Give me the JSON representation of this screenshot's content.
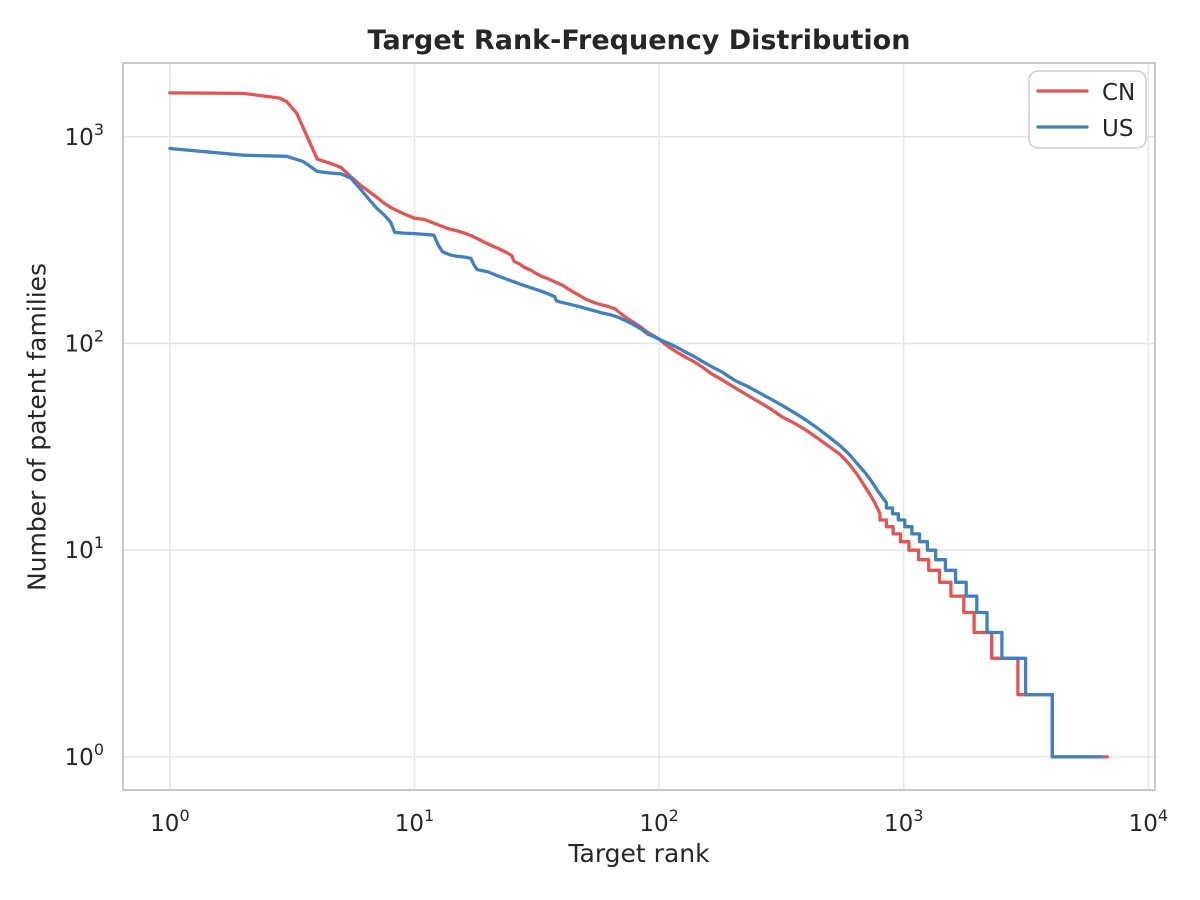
{
  "chart_data": {
    "type": "line",
    "title": "Target Rank-Frequency Distribution",
    "xlabel": "Target rank",
    "ylabel": "Number of patent families",
    "xscale": "log",
    "yscale": "log",
    "xlim": [
      0.643,
      10650
    ],
    "ylim": [
      0.692,
      2275
    ],
    "x_tick_exponents": [
      0,
      1,
      2,
      3,
      4
    ],
    "y_tick_exponents": [
      0,
      1,
      2,
      3
    ],
    "tick_base": "10",
    "grid": true,
    "legend": {
      "position": "upper right",
      "labels": [
        "CN",
        "US"
      ]
    },
    "style": {
      "grid_color": "#e6e6e6",
      "spine_color": "#c9c9c9",
      "text_color": "#262626",
      "background": "#ffffff",
      "line_width": 3.3
    },
    "series": [
      {
        "name": "CN",
        "color": "#e25552",
        "points": [
          [
            1,
            1630
          ],
          [
            2,
            1622
          ],
          [
            2.8,
            1540
          ],
          [
            3,
            1480
          ],
          [
            3.3,
            1300
          ],
          [
            4,
            780
          ],
          [
            4.5,
            745
          ],
          [
            5,
            712
          ],
          [
            5.5,
            640
          ],
          [
            6,
            585
          ],
          [
            6.5,
            545
          ],
          [
            7,
            510
          ],
          [
            7.5,
            478
          ],
          [
            8,
            455
          ],
          [
            9,
            425
          ],
          [
            10,
            404
          ],
          [
            11,
            398
          ],
          [
            12,
            382
          ],
          [
            13,
            368
          ],
          [
            14,
            357
          ],
          [
            15,
            350
          ],
          [
            16,
            342
          ],
          [
            17,
            333
          ],
          [
            18,
            322
          ],
          [
            19,
            312
          ],
          [
            20,
            303
          ],
          [
            21,
            295
          ],
          [
            22,
            288
          ],
          [
            24,
            274
          ],
          [
            25,
            266
          ],
          [
            25.5,
            250
          ],
          [
            27,
            242
          ],
          [
            28,
            234
          ],
          [
            30,
            226
          ],
          [
            31,
            220
          ],
          [
            33,
            212
          ],
          [
            35,
            206
          ],
          [
            37,
            200
          ],
          [
            40,
            192
          ],
          [
            43,
            182
          ],
          [
            46,
            174
          ],
          [
            50,
            164
          ],
          [
            54,
            158
          ],
          [
            58,
            154
          ],
          [
            62,
            151
          ],
          [
            66,
            147
          ],
          [
            70,
            139
          ],
          [
            75,
            131
          ],
          [
            80,
            125
          ],
          [
            85,
            119
          ],
          [
            90,
            113
          ],
          [
            95,
            109
          ],
          [
            100,
            105
          ],
          [
            105,
            100
          ],
          [
            110,
            96
          ],
          [
            118,
            91
          ],
          [
            128,
            86
          ],
          [
            138,
            82
          ],
          [
            150,
            77
          ],
          [
            165,
            71
          ],
          [
            180,
            67
          ],
          [
            200,
            62
          ],
          [
            225,
            57
          ],
          [
            250,
            53
          ],
          [
            280,
            49
          ],
          [
            320,
            44
          ],
          [
            360,
            41
          ],
          [
            400,
            38
          ],
          [
            450,
            34.5
          ],
          [
            500,
            31.5
          ],
          [
            550,
            29
          ],
          [
            600,
            26
          ],
          [
            650,
            23
          ],
          [
            700,
            20
          ],
          [
            730,
            18.5
          ],
          [
            760,
            17
          ],
          [
            790,
            15.5
          ],
          [
            800,
            15
          ],
          [
            800,
            14
          ],
          [
            850,
            14
          ],
          [
            850,
            13
          ],
          [
            905,
            13
          ],
          [
            905,
            12
          ],
          [
            970,
            12
          ],
          [
            970,
            11
          ],
          [
            1050,
            11
          ],
          [
            1050,
            10
          ],
          [
            1150,
            10
          ],
          [
            1150,
            9
          ],
          [
            1265,
            9
          ],
          [
            1265,
            8
          ],
          [
            1400,
            8
          ],
          [
            1400,
            7
          ],
          [
            1560,
            7
          ],
          [
            1560,
            6
          ],
          [
            1760,
            6
          ],
          [
            1760,
            5
          ],
          [
            1940,
            5
          ],
          [
            1940,
            4
          ],
          [
            2290,
            4
          ],
          [
            2290,
            3
          ],
          [
            2930,
            3
          ],
          [
            2930,
            2
          ],
          [
            4050,
            2
          ],
          [
            4050,
            1
          ],
          [
            6800,
            1
          ]
        ]
      },
      {
        "name": "US",
        "color": "#3f80c1",
        "points": [
          [
            1,
            878
          ],
          [
            2,
            815
          ],
          [
            3,
            805
          ],
          [
            3.5,
            760
          ],
          [
            4,
            680
          ],
          [
            4.5,
            668
          ],
          [
            5,
            662
          ],
          [
            5.5,
            630
          ],
          [
            6,
            560
          ],
          [
            6.5,
            500
          ],
          [
            7,
            452
          ],
          [
            7.5,
            420
          ],
          [
            8,
            385
          ],
          [
            8.3,
            345
          ],
          [
            9,
            342
          ],
          [
            10,
            340
          ],
          [
            11,
            337
          ],
          [
            12,
            334
          ],
          [
            12.5,
            300
          ],
          [
            13,
            278
          ],
          [
            14,
            268
          ],
          [
            15,
            264
          ],
          [
            16,
            262
          ],
          [
            17,
            258
          ],
          [
            17.5,
            240
          ],
          [
            18,
            228
          ],
          [
            19,
            225
          ],
          [
            20,
            222
          ],
          [
            22,
            212
          ],
          [
            24,
            204
          ],
          [
            26,
            197
          ],
          [
            28,
            191
          ],
          [
            30,
            186
          ],
          [
            33,
            179
          ],
          [
            36,
            172
          ],
          [
            37.5,
            168
          ],
          [
            38,
            161
          ],
          [
            40,
            158
          ],
          [
            43,
            155
          ],
          [
            47,
            151
          ],
          [
            52,
            146
          ],
          [
            58,
            141
          ],
          [
            63,
            138
          ],
          [
            68,
            134
          ],
          [
            72,
            130
          ],
          [
            76,
            126
          ],
          [
            80,
            122
          ],
          [
            85,
            117
          ],
          [
            90,
            111
          ],
          [
            95,
            108
          ],
          [
            100,
            105
          ],
          [
            105,
            102
          ],
          [
            110,
            100
          ],
          [
            118,
            96
          ],
          [
            128,
            91
          ],
          [
            138,
            87
          ],
          [
            150,
            82
          ],
          [
            165,
            77
          ],
          [
            180,
            73
          ],
          [
            205,
            66
          ],
          [
            230,
            62
          ],
          [
            255,
            58
          ],
          [
            285,
            54
          ],
          [
            320,
            50
          ],
          [
            360,
            46
          ],
          [
            400,
            42.5
          ],
          [
            450,
            38.5
          ],
          [
            500,
            35
          ],
          [
            550,
            32
          ],
          [
            600,
            29
          ],
          [
            650,
            26
          ],
          [
            700,
            23.5
          ],
          [
            740,
            21.5
          ],
          [
            780,
            19.5
          ],
          [
            820,
            18
          ],
          [
            850,
            17
          ],
          [
            850,
            16
          ],
          [
            900,
            16
          ],
          [
            900,
            15
          ],
          [
            950,
            15
          ],
          [
            950,
            14
          ],
          [
            1010,
            14
          ],
          [
            1010,
            13
          ],
          [
            1080,
            13
          ],
          [
            1080,
            12
          ],
          [
            1160,
            12
          ],
          [
            1160,
            11
          ],
          [
            1250,
            11
          ],
          [
            1250,
            10
          ],
          [
            1350,
            10
          ],
          [
            1350,
            9
          ],
          [
            1480,
            9
          ],
          [
            1480,
            8
          ],
          [
            1630,
            8
          ],
          [
            1630,
            7
          ],
          [
            1800,
            7
          ],
          [
            1800,
            6
          ],
          [
            1990,
            6
          ],
          [
            1990,
            5
          ],
          [
            2190,
            5
          ],
          [
            2190,
            4
          ],
          [
            2520,
            4
          ],
          [
            2520,
            3
          ],
          [
            3150,
            3
          ],
          [
            3150,
            2
          ],
          [
            4050,
            2
          ],
          [
            4050,
            1
          ],
          [
            6400,
            1
          ]
        ]
      }
    ]
  }
}
